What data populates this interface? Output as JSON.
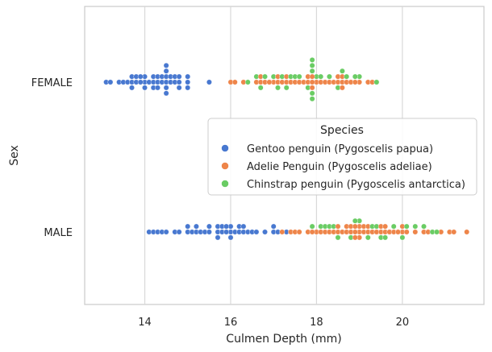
{
  "chart_data": {
    "type": "scatter",
    "subtype": "swarm",
    "title": "",
    "xlabel": "Culmen Depth (mm)",
    "ylabel": "Sex",
    "xlim": [
      12.6,
      21.9
    ],
    "xticks": [
      14,
      16,
      18,
      20
    ],
    "categories": [
      "FEMALE",
      "MALE"
    ],
    "grid": "vertical",
    "legend": {
      "title": "Species",
      "position": "center-right"
    },
    "series": [
      {
        "name": "Gentoo penguin (Pygoscelis papua)",
        "color": "#4878d0",
        "FEMALE": [
          13.1,
          13.2,
          13.4,
          13.5,
          13.6,
          13.7,
          13.7,
          13.7,
          13.8,
          13.8,
          13.9,
          13.9,
          14.0,
          14.0,
          14.0,
          14.1,
          14.2,
          14.2,
          14.2,
          14.3,
          14.3,
          14.3,
          14.4,
          14.4,
          14.5,
          14.5,
          14.5,
          14.5,
          14.5,
          14.5,
          14.6,
          14.6,
          14.7,
          14.7,
          14.8,
          14.8,
          14.8,
          15.0,
          15.0,
          15.0,
          15.5
        ],
        "MALE": [
          14.1,
          14.2,
          14.3,
          14.4,
          14.5,
          14.7,
          14.8,
          15.0,
          15.0,
          15.1,
          15.2,
          15.2,
          15.3,
          15.4,
          15.5,
          15.5,
          15.7,
          15.7,
          15.7,
          15.8,
          15.8,
          15.9,
          15.9,
          16.0,
          16.0,
          16.0,
          16.1,
          16.2,
          16.2,
          16.3,
          16.3,
          16.4,
          16.5,
          16.6,
          16.8,
          17.0,
          17.0,
          17.1,
          17.3
        ]
      },
      {
        "name": "Adelie Penguin (Pygoscelis adeliae)",
        "color": "#ee854a",
        "FEMALE": [
          16.0,
          16.1,
          16.3,
          16.6,
          16.7,
          16.7,
          16.8,
          16.9,
          17.0,
          17.1,
          17.1,
          17.2,
          17.3,
          17.3,
          17.4,
          17.5,
          17.6,
          17.7,
          17.8,
          17.8,
          17.9,
          17.9,
          17.9,
          18.0,
          18.1,
          18.2,
          18.3,
          18.4,
          18.5,
          18.5,
          18.6,
          18.6,
          18.6,
          18.7,
          18.8,
          18.9,
          19.0,
          19.2,
          19.3
        ],
        "MALE": [
          17.2,
          17.4,
          17.5,
          17.6,
          17.8,
          17.9,
          18.0,
          18.1,
          18.2,
          18.3,
          18.4,
          18.5,
          18.5,
          18.6,
          18.7,
          18.7,
          18.8,
          18.8,
          18.9,
          18.9,
          18.9,
          19.0,
          19.0,
          19.0,
          19.1,
          19.1,
          19.2,
          19.2,
          19.3,
          19.4,
          19.5,
          19.5,
          19.6,
          19.6,
          19.7,
          19.8,
          19.9,
          20.0,
          20.0,
          20.1,
          20.3,
          20.5,
          20.6,
          20.9,
          21.1,
          21.2,
          21.5
        ]
      },
      {
        "name": "Chinstrap penguin (Pygoscelis antarctica)",
        "color": "#6acc64",
        "FEMALE": [
          16.4,
          16.6,
          16.7,
          16.8,
          17.0,
          17.1,
          17.2,
          17.3,
          17.4,
          17.5,
          17.6,
          17.8,
          17.9,
          17.9,
          17.9,
          17.9,
          17.9,
          18.0,
          18.1,
          18.3,
          18.5,
          18.6,
          18.7,
          18.9,
          19.0,
          19.4
        ],
        "MALE": [
          17.9,
          18.1,
          18.2,
          18.3,
          18.4,
          18.5,
          18.8,
          18.9,
          19.0,
          19.2,
          19.3,
          19.4,
          19.5,
          19.6,
          19.8,
          20.0,
          20.1,
          20.3,
          20.5,
          20.7,
          20.8
        ]
      }
    ]
  }
}
